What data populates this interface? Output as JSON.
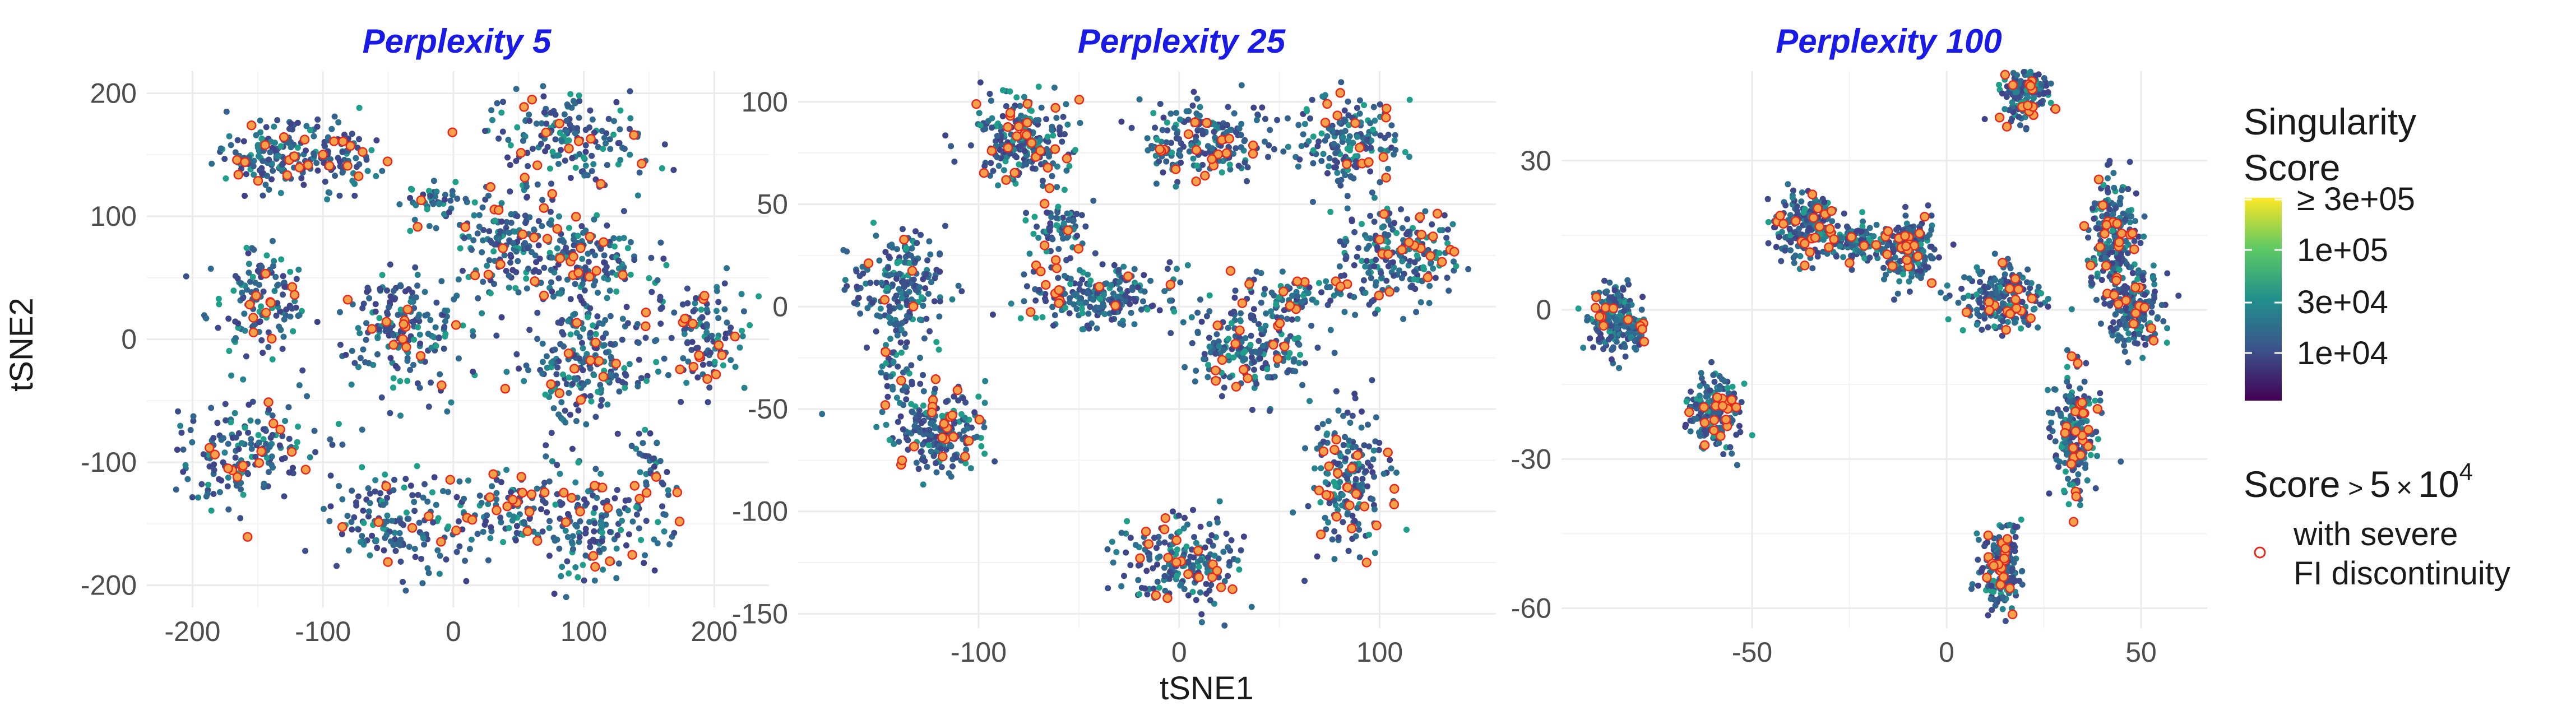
{
  "chart_data": [
    {
      "type": "scatter",
      "title": "Perplexity 5",
      "xlim": [
        -235,
        242
      ],
      "ylim": [
        -218,
        218
      ],
      "xticks": [
        -200,
        -100,
        0,
        100,
        200
      ],
      "yticks": [
        -200,
        -100,
        0,
        100,
        200
      ],
      "ylabel": "tSNE2",
      "xlabel": "",
      "grid": true,
      "clusters": [
        {
          "cx": -140,
          "cy": 150,
          "rx": 40,
          "ry": 25,
          "n": 140
        },
        {
          "cx": -90,
          "cy": 150,
          "rx": 32,
          "ry": 25,
          "n": 90
        },
        {
          "cx": -20,
          "cy": 110,
          "rx": 18,
          "ry": 20,
          "n": 40
        },
        {
          "cx": -150,
          "cy": 30,
          "rx": 35,
          "ry": 38,
          "n": 140
        },
        {
          "cx": -40,
          "cy": 10,
          "rx": 48,
          "ry": 45,
          "n": 200
        },
        {
          "cx": 40,
          "cy": 80,
          "rx": 35,
          "ry": 35,
          "n": 140
        },
        {
          "cx": 90,
          "cy": 160,
          "rx": 55,
          "ry": 38,
          "n": 180
        },
        {
          "cx": 95,
          "cy": 60,
          "rx": 40,
          "ry": 35,
          "n": 160
        },
        {
          "cx": 100,
          "cy": -20,
          "rx": 45,
          "ry": 40,
          "n": 200
        },
        {
          "cx": 190,
          "cy": 5,
          "rx": 32,
          "ry": 40,
          "n": 130
        },
        {
          "cx": -160,
          "cy": -90,
          "rx": 55,
          "ry": 38,
          "n": 170
        },
        {
          "cx": -40,
          "cy": -150,
          "rx": 50,
          "ry": 35,
          "n": 160
        },
        {
          "cx": 40,
          "cy": -140,
          "rx": 30,
          "ry": 30,
          "n": 90
        },
        {
          "cx": 110,
          "cy": -150,
          "rx": 48,
          "ry": 42,
          "n": 170
        },
        {
          "cx": 150,
          "cy": -100,
          "rx": 15,
          "ry": 20,
          "n": 30
        }
      ]
    },
    {
      "type": "scatter",
      "title": "Perplexity 25",
      "xlim": [
        -190,
        158
      ],
      "ylim": [
        -157,
        115
      ],
      "xticks": [
        -100,
        0,
        100
      ],
      "yticks": [
        -150,
        -100,
        -50,
        0,
        50,
        100
      ],
      "xlabel": "tSNE1",
      "ylabel": "",
      "grid": true,
      "clusters": [
        {
          "cx": -80,
          "cy": 80,
          "rx": 22,
          "ry": 18,
          "n": 220
        },
        {
          "cx": -60,
          "cy": 40,
          "rx": 12,
          "ry": 14,
          "n": 70
        },
        {
          "cx": -140,
          "cy": 10,
          "rx": 22,
          "ry": 22,
          "n": 200
        },
        {
          "cx": -140,
          "cy": -30,
          "rx": 8,
          "ry": 15,
          "n": 40
        },
        {
          "cx": -120,
          "cy": -60,
          "rx": 22,
          "ry": 18,
          "n": 220
        },
        {
          "cx": -40,
          "cy": 5,
          "rx": 32,
          "ry": 14,
          "n": 220
        },
        {
          "cx": 15,
          "cy": 80,
          "rx": 30,
          "ry": 18,
          "n": 200
        },
        {
          "cx": 85,
          "cy": 80,
          "rx": 22,
          "ry": 22,
          "n": 170
        },
        {
          "cx": 110,
          "cy": 25,
          "rx": 25,
          "ry": 20,
          "n": 200
        },
        {
          "cx": 60,
          "cy": 5,
          "rx": 30,
          "ry": 10,
          "n": 90
        },
        {
          "cx": 35,
          "cy": -20,
          "rx": 30,
          "ry": 18,
          "n": 200
        },
        {
          "cx": 85,
          "cy": -85,
          "rx": 18,
          "ry": 32,
          "n": 200
        },
        {
          "cx": 0,
          "cy": -125,
          "rx": 28,
          "ry": 20,
          "n": 200
        }
      ]
    },
    {
      "type": "scatter",
      "title": "Perplexity 100",
      "xlim": [
        -99,
        67
      ],
      "ylim": [
        -64,
        48
      ],
      "xticks": [
        -50,
        0,
        50
      ],
      "yticks": [
        -60,
        -30,
        0,
        30
      ],
      "xlabel": "",
      "ylabel": "",
      "grid": true,
      "clusters": [
        {
          "cx": -85,
          "cy": -2,
          "rx": 7,
          "ry": 6,
          "n": 200
        },
        {
          "cx": -60,
          "cy": -20,
          "rx": 6,
          "ry": 7,
          "n": 180
        },
        {
          "cx": -36,
          "cy": 17,
          "rx": 7,
          "ry": 6,
          "n": 190
        },
        {
          "cx": -22,
          "cy": 14,
          "rx": 7,
          "ry": 4,
          "n": 90
        },
        {
          "cx": -10,
          "cy": 12,
          "rx": 6,
          "ry": 6,
          "n": 180
        },
        {
          "cx": 14,
          "cy": 2,
          "rx": 10,
          "ry": 6,
          "n": 200
        },
        {
          "cx": 20,
          "cy": 45,
          "rx": 6,
          "ry": 7,
          "n": 190
        },
        {
          "cx": 43,
          "cy": 15,
          "rx": 6,
          "ry": 10,
          "n": 200
        },
        {
          "cx": 48,
          "cy": 0,
          "rx": 7,
          "ry": 7,
          "n": 160
        },
        {
          "cx": 33,
          "cy": -25,
          "rx": 5,
          "ry": 11,
          "n": 190
        },
        {
          "cx": 14,
          "cy": -52,
          "rx": 5,
          "ry": 8,
          "n": 180
        }
      ]
    }
  ],
  "legend": {
    "title_line1": "Singularity",
    "title_line2": "Score",
    "ticks": [
      "≥ 3e+05",
      "1e+05",
      "3e+04",
      "1e+04"
    ],
    "colorbar_colors": [
      "#440154",
      "#3b528b",
      "#21908c",
      "#5dc963",
      "#fde725"
    ],
    "marker_title_prefix": "Score",
    "marker_title_gt": ">",
    "marker_title_coef": "5",
    "marker_title_times": "×",
    "marker_title_base": "10",
    "marker_title_exp": "4",
    "marker_label_line1": "with severe",
    "marker_label_line2": "FI discontinuity",
    "marker_color": "#e8281d"
  },
  "colors": {
    "title": "#1a1ae6",
    "grid": "#ebebeb",
    "points": [
      "#3b4f8a",
      "#31688e",
      "#26828e",
      "#2d6f8e",
      "#404387",
      "#3e4a89",
      "#1f9e89",
      "#35608d"
    ],
    "highlight_fill": "#f4a24a",
    "highlight_stroke": "#e8281d"
  }
}
